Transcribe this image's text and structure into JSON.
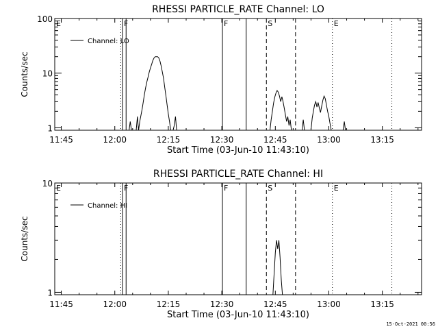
{
  "footer": {
    "timestamp": "15-Oct-2021 00:56"
  },
  "chart_data": [
    {
      "type": "line",
      "title": "RHESSI PARTICLE_RATE Channel: LO",
      "xlabel": "Start Time (03-Jun-10 11:43:10)",
      "ylabel": "Counts/sec",
      "y_scale": "log",
      "ylim": [
        0.9,
        100
      ],
      "xlim": [
        "11:43:10",
        "13:26:00"
      ],
      "x_ticks": [
        "11:45",
        "12:00",
        "12:15",
        "12:30",
        "12:45",
        "13:00",
        "13:15"
      ],
      "y_ticks": [
        "1",
        "10",
        "100"
      ],
      "legend": {
        "position": "top-left",
        "entries": [
          "Channel: LO"
        ]
      },
      "markers": [
        {
          "label": "E",
          "time": "11:43:10",
          "style": "dotted"
        },
        {
          "label": "",
          "time": "12:01:40",
          "style": "dotted"
        },
        {
          "label": "F",
          "time": "12:02:10",
          "style": "solid"
        },
        {
          "label": "",
          "time": "12:03:10",
          "style": "solid"
        },
        {
          "label": "F",
          "time": "12:30:10",
          "style": "solid"
        },
        {
          "label": "",
          "time": "12:36:50",
          "style": "solid"
        },
        {
          "label": "S",
          "time": "12:42:30",
          "style": "dashed"
        },
        {
          "label": "",
          "time": "12:50:40",
          "style": "dashed"
        },
        {
          "label": "E",
          "time": "13:01:00",
          "style": "dotted"
        },
        {
          "label": "",
          "time": "13:17:40",
          "style": "dotted"
        }
      ],
      "series": [
        {
          "name": "Channel: LO",
          "segments": [
            [
              [
                "12:04:00",
                0.9
              ],
              [
                "12:04:20",
                1.3
              ],
              [
                "12:04:40",
                0.9
              ]
            ],
            [
              [
                "12:06:00",
                0.9
              ],
              [
                "12:06:20",
                1.6
              ],
              [
                "12:06:40",
                0.9
              ],
              [
                "12:07:00",
                1.3
              ],
              [
                "12:07:20",
                1.7
              ],
              [
                "12:07:40",
                2.2
              ],
              [
                "12:08:00",
                3.0
              ],
              [
                "12:08:20",
                4.2
              ],
              [
                "12:08:40",
                5.5
              ],
              [
                "12:09:00",
                7.0
              ],
              [
                "12:09:20",
                8.5
              ],
              [
                "12:09:40",
                10.5
              ],
              [
                "12:10:00",
                12.5
              ],
              [
                "12:10:20",
                14.5
              ],
              [
                "12:10:40",
                17.0
              ],
              [
                "12:11:00",
                19.0
              ],
              [
                "12:11:20",
                20.0
              ],
              [
                "12:11:40",
                20.0
              ],
              [
                "12:12:00",
                20.0
              ],
              [
                "12:12:20",
                19.0
              ],
              [
                "12:12:40",
                16.5
              ],
              [
                "12:13:00",
                13.5
              ],
              [
                "12:13:20",
                10.5
              ],
              [
                "12:13:40",
                8.0
              ],
              [
                "12:14:00",
                5.5
              ],
              [
                "12:14:20",
                3.8
              ],
              [
                "12:14:40",
                2.6
              ],
              [
                "12:15:00",
                1.8
              ],
              [
                "12:15:20",
                1.3
              ],
              [
                "12:15:40",
                0.9
              ]
            ],
            [
              [
                "12:16:20",
                0.9
              ],
              [
                "12:16:40",
                1.1
              ],
              [
                "12:17:00",
                1.6
              ],
              [
                "12:17:20",
                0.9
              ]
            ],
            [
              [
                "12:43:30",
                0.9
              ],
              [
                "12:43:50",
                1.4
              ],
              [
                "12:44:10",
                2.0
              ],
              [
                "12:44:30",
                2.8
              ],
              [
                "12:44:50",
                3.6
              ],
              [
                "12:45:10",
                4.3
              ],
              [
                "12:45:30",
                4.8
              ],
              [
                "12:45:50",
                4.5
              ],
              [
                "12:46:10",
                3.8
              ],
              [
                "12:46:30",
                3.0
              ],
              [
                "12:46:50",
                3.7
              ],
              [
                "12:47:10",
                3.0
              ],
              [
                "12:47:30",
                2.3
              ],
              [
                "12:47:50",
                1.7
              ],
              [
                "12:48:10",
                1.3
              ],
              [
                "12:48:30",
                1.6
              ],
              [
                "12:48:50",
                1.1
              ],
              [
                "12:49:10",
                1.4
              ],
              [
                "12:49:30",
                0.9
              ]
            ],
            [
              [
                "12:52:30",
                0.9
              ],
              [
                "12:52:50",
                1.4
              ],
              [
                "12:53:10",
                0.9
              ]
            ],
            [
              [
                "12:55:00",
                0.9
              ],
              [
                "12:55:20",
                1.5
              ],
              [
                "12:55:40",
                2.0
              ],
              [
                "12:56:00",
                2.6
              ],
              [
                "12:56:20",
                3.0
              ],
              [
                "12:56:40",
                2.4
              ],
              [
                "12:57:00",
                2.9
              ],
              [
                "12:57:20",
                2.3
              ],
              [
                "12:57:40",
                1.9
              ],
              [
                "12:58:00",
                2.5
              ],
              [
                "12:58:20",
                3.2
              ],
              [
                "12:58:40",
                3.8
              ],
              [
                "12:59:00",
                3.4
              ],
              [
                "12:59:20",
                2.6
              ],
              [
                "12:59:40",
                2.0
              ],
              [
                "13:00:00",
                1.6
              ],
              [
                "13:00:20",
                1.2
              ],
              [
                "13:00:40",
                0.9
              ]
            ],
            [
              [
                "13:04:00",
                0.9
              ],
              [
                "13:04:20",
                1.3
              ],
              [
                "13:04:40",
                0.9
              ]
            ]
          ]
        }
      ]
    },
    {
      "type": "line",
      "title": "RHESSI PARTICLE_RATE Channel: HI",
      "xlabel": "Start Time (03-Jun-10 11:43:10)",
      "ylabel": "Counts/sec",
      "y_scale": "log",
      "ylim": [
        0.95,
        10
      ],
      "xlim": [
        "11:43:10",
        "13:26:00"
      ],
      "x_ticks": [
        "11:45",
        "12:00",
        "12:15",
        "12:30",
        "12:45",
        "13:00",
        "13:15"
      ],
      "y_ticks": [
        "1",
        "10"
      ],
      "legend": {
        "position": "top-left",
        "entries": [
          "Channel: HI"
        ]
      },
      "markers": [
        {
          "label": "E",
          "time": "11:43:10",
          "style": "dotted"
        },
        {
          "label": "",
          "time": "12:01:40",
          "style": "dotted"
        },
        {
          "label": "F",
          "time": "12:02:10",
          "style": "solid"
        },
        {
          "label": "",
          "time": "12:03:10",
          "style": "solid"
        },
        {
          "label": "F",
          "time": "12:30:10",
          "style": "solid"
        },
        {
          "label": "",
          "time": "12:36:50",
          "style": "solid"
        },
        {
          "label": "S",
          "time": "12:42:30",
          "style": "dashed"
        },
        {
          "label": "",
          "time": "12:50:40",
          "style": "dashed"
        },
        {
          "label": "E",
          "time": "13:01:00",
          "style": "dotted"
        },
        {
          "label": "",
          "time": "13:17:40",
          "style": "dotted"
        }
      ],
      "series": [
        {
          "name": "Channel: HI",
          "segments": [
            [
              [
                "12:44:20",
                0.95
              ],
              [
                "12:44:40",
                1.5
              ],
              [
                "12:45:00",
                2.3
              ],
              [
                "12:45:20",
                3.0
              ],
              [
                "12:45:40",
                2.5
              ],
              [
                "12:46:00",
                3.0
              ],
              [
                "12:46:20",
                2.1
              ],
              [
                "12:46:40",
                1.3
              ],
              [
                "12:47:00",
                0.95
              ]
            ]
          ]
        }
      ]
    }
  ]
}
